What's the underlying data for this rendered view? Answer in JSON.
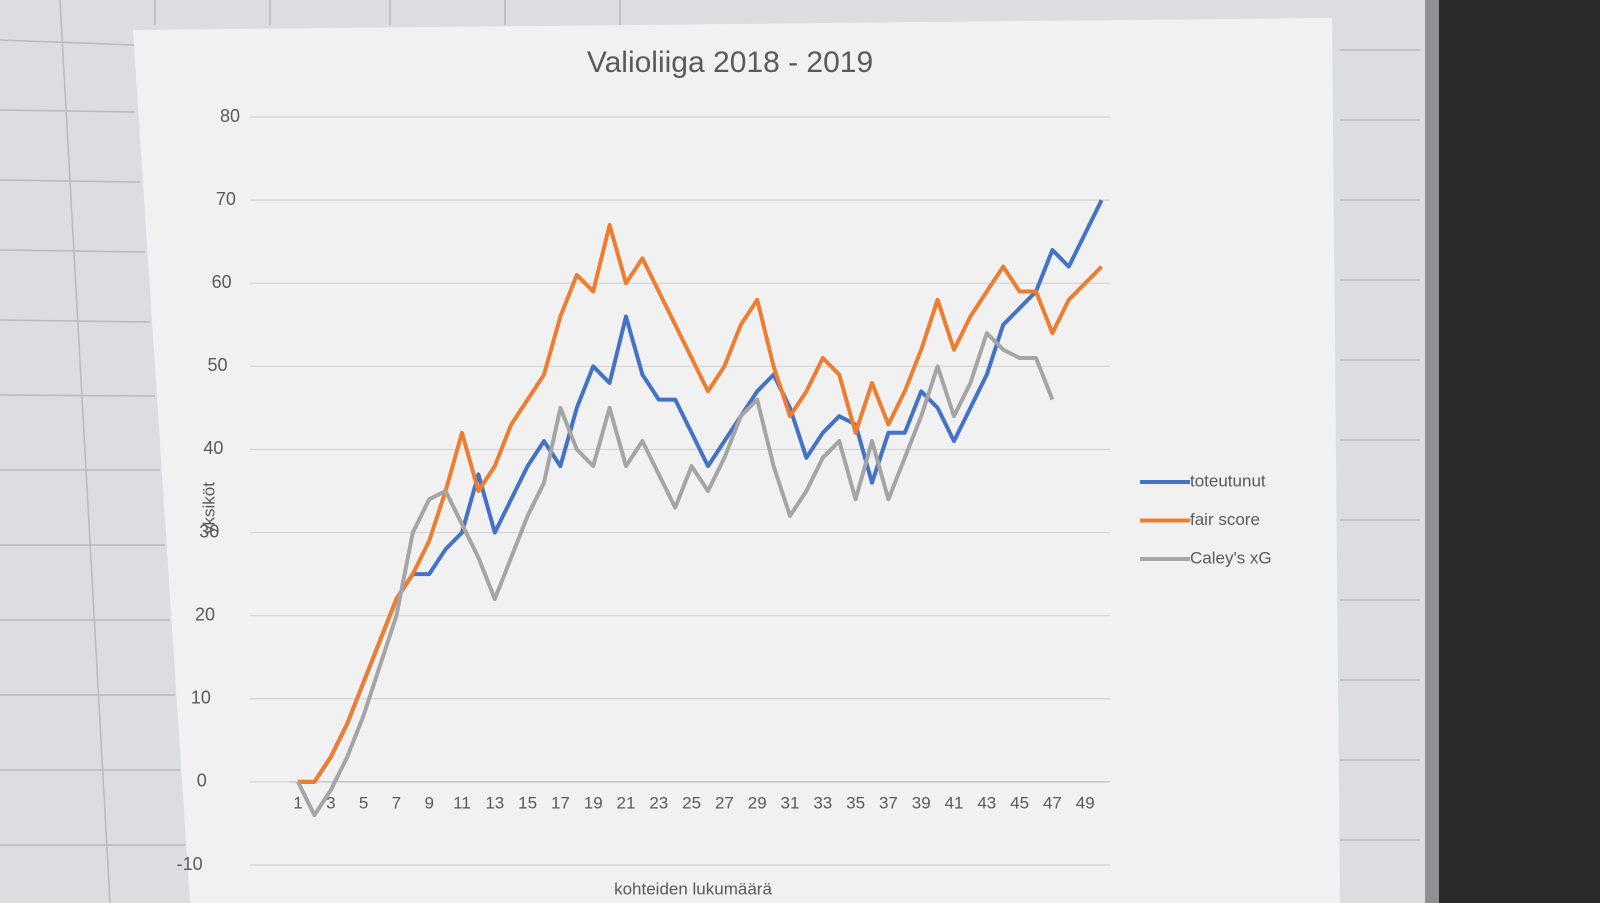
{
  "chart_data": {
    "type": "line",
    "title": "Valioliiga 2018 - 2019",
    "y_label": "yksiköt",
    "x_label": "kohteiden lukumäärä",
    "categories": [
      1,
      null,
      3,
      null,
      5,
      null,
      7,
      null,
      9,
      null,
      11,
      null,
      13,
      null,
      15,
      null,
      17,
      null,
      19,
      null,
      21,
      null,
      23,
      null,
      25,
      null,
      27,
      null,
      29,
      null,
      31,
      null,
      33,
      null,
      35,
      null,
      37,
      null,
      39,
      null,
      41,
      null,
      43,
      null,
      45,
      null,
      47,
      null,
      49,
      null
    ],
    "series": [
      {
        "name": "toteutunut",
        "color": "#4472c4",
        "values": [
          0,
          0,
          3,
          7,
          12,
          17,
          22,
          25,
          25,
          28,
          30,
          37,
          30,
          34,
          38,
          41,
          38,
          45,
          50,
          48,
          56,
          49,
          46,
          46,
          42,
          38,
          41,
          44,
          47,
          49,
          45,
          39,
          42,
          44,
          43,
          36,
          42,
          42,
          47,
          45,
          41,
          45,
          49,
          55,
          57,
          59,
          64,
          62,
          66,
          70
        ]
      },
      {
        "name": "fair score",
        "color": "#ed7d31",
        "values": [
          0,
          0,
          3,
          7,
          12,
          17,
          22,
          25,
          29,
          35,
          42,
          35,
          38,
          43,
          46,
          49,
          56,
          61,
          59,
          67,
          60,
          63,
          59,
          55,
          51,
          47,
          50,
          55,
          58,
          50,
          44,
          47,
          51,
          49,
          42,
          48,
          43,
          47,
          52,
          58,
          52,
          56,
          59,
          62,
          59,
          59,
          54,
          58,
          60,
          62
        ]
      },
      {
        "name": "Caley's xG",
        "color": "#a5a5a5",
        "values": [
          0,
          -4,
          -1,
          3,
          8,
          14,
          20,
          30,
          34,
          35,
          31,
          27,
          22,
          27,
          32,
          36,
          45,
          40,
          38,
          45,
          38,
          41,
          37,
          33,
          38,
          35,
          39,
          44,
          46,
          38,
          32,
          35,
          39,
          41,
          34,
          41,
          34,
          39,
          44,
          50,
          44,
          48,
          54,
          52,
          51,
          51,
          46,
          null,
          null,
          null
        ]
      }
    ],
    "ylim": [
      -10,
      80
    ],
    "yticks": [
      -10,
      0,
      10,
      20,
      30,
      40,
      50,
      60,
      70,
      80
    ],
    "grid": true,
    "legend": "right"
  }
}
